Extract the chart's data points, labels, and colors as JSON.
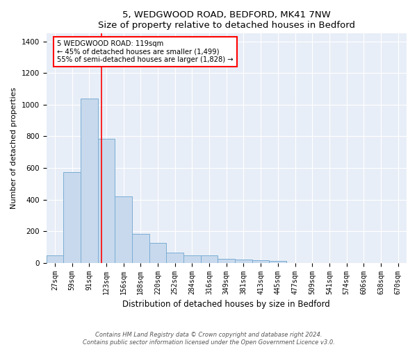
{
  "title": "5, WEDGWOOD ROAD, BEDFORD, MK41 7NW",
  "subtitle": "Size of property relative to detached houses in Bedford",
  "xlabel": "Distribution of detached houses by size in Bedford",
  "ylabel": "Number of detached properties",
  "bar_color": "#c8d9ed",
  "bar_edge_color": "#7aadd4",
  "background_color": "#e8eef7",
  "grid_color": "#ffffff",
  "fig_background": "#ffffff",
  "categories": [
    "27sqm",
    "59sqm",
    "91sqm",
    "123sqm",
    "156sqm",
    "188sqm",
    "220sqm",
    "252sqm",
    "284sqm",
    "316sqm",
    "349sqm",
    "381sqm",
    "413sqm",
    "445sqm",
    "477sqm",
    "509sqm",
    "541sqm",
    "574sqm",
    "606sqm",
    "638sqm",
    "670sqm"
  ],
  "values": [
    47,
    572,
    1040,
    785,
    420,
    185,
    125,
    65,
    47,
    47,
    25,
    22,
    15,
    10,
    0,
    0,
    0,
    0,
    0,
    0,
    0
  ],
  "red_line_index": 2.72,
  "annotation_text": "5 WEDGWOOD ROAD: 119sqm\n← 45% of detached houses are smaller (1,499)\n55% of semi-detached houses are larger (1,828) →",
  "footer": "Contains HM Land Registry data © Crown copyright and database right 2024.\nContains public sector information licensed under the Open Government Licence v3.0.",
  "ylim": [
    0,
    1450
  ],
  "yticks": [
    0,
    200,
    400,
    600,
    800,
    1000,
    1200,
    1400
  ],
  "title_fontsize": 9.5,
  "label_fontsize": 8,
  "tick_fontsize": 7,
  "footer_fontsize": 6
}
